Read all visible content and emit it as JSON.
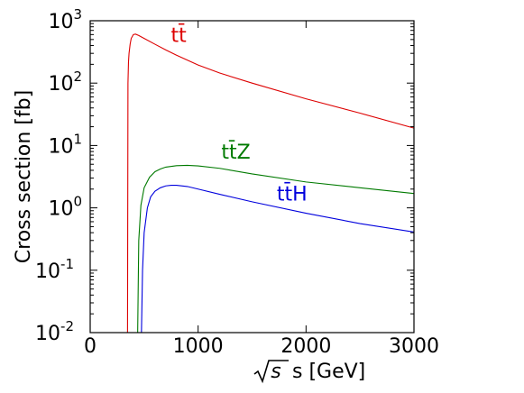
{
  "chart_data": {
    "type": "line",
    "xlabel_suffix": "s [GeV]",
    "ylabel": "Cross section [fb]",
    "xlim": [
      0,
      3000
    ],
    "ylim": [
      0.01,
      1000
    ],
    "yscale": "log",
    "grid": false,
    "x_ticks": [
      {
        "value": 0,
        "label": "0"
      },
      {
        "value": 1000,
        "label": "1000"
      },
      {
        "value": 2000,
        "label": "2000"
      },
      {
        "value": 3000,
        "label": "3000"
      }
    ],
    "y_ticks": [
      {
        "value": 0.01,
        "base": "10",
        "exp": "-2"
      },
      {
        "value": 0.1,
        "base": "10",
        "exp": "-1"
      },
      {
        "value": 1,
        "base": "10",
        "exp": "0"
      },
      {
        "value": 10,
        "base": "10",
        "exp": "1"
      },
      {
        "value": 100,
        "base": "10",
        "exp": "2"
      },
      {
        "value": 1000,
        "base": "10",
        "exp": "3"
      }
    ],
    "series": [
      {
        "name": "tt̄",
        "color": "#dd0000",
        "label_at": [
          820,
          460
        ],
        "x": [
          346,
          348,
          350,
          355,
          360,
          370,
          380,
          400,
          420,
          450,
          500,
          600,
          700,
          800,
          1000,
          1200,
          1500,
          2000,
          2500,
          3000
        ],
        "y": [
          0.01,
          1,
          100,
          220,
          300,
          420,
          520,
          600,
          610,
          580,
          520,
          420,
          340,
          280,
          195,
          145,
          100,
          56,
          33,
          19
        ]
      },
      {
        "name": "tt̄Z",
        "color": "#007a00",
        "label_at": [
          1350,
          6.2
        ],
        "x": [
          440,
          450,
          470,
          500,
          550,
          600,
          650,
          700,
          800,
          900,
          1000,
          1200,
          1500,
          2000,
          2500,
          3000
        ],
        "y": [
          0.01,
          0.3,
          1.1,
          2.1,
          3.1,
          3.8,
          4.2,
          4.5,
          4.75,
          4.8,
          4.7,
          4.3,
          3.5,
          2.6,
          2.1,
          1.7
        ]
      },
      {
        "name": "tt̄H",
        "color": "#0000dd",
        "label_at": [
          1870,
          1.3
        ],
        "x": [
          475,
          485,
          500,
          530,
          560,
          600,
          650,
          700,
          750,
          800,
          900,
          1000,
          1200,
          1500,
          2000,
          2500,
          3000
        ],
        "y": [
          0.01,
          0.1,
          0.4,
          1.0,
          1.5,
          1.85,
          2.1,
          2.25,
          2.3,
          2.3,
          2.2,
          2.0,
          1.65,
          1.25,
          0.82,
          0.56,
          0.41
        ]
      }
    ]
  }
}
